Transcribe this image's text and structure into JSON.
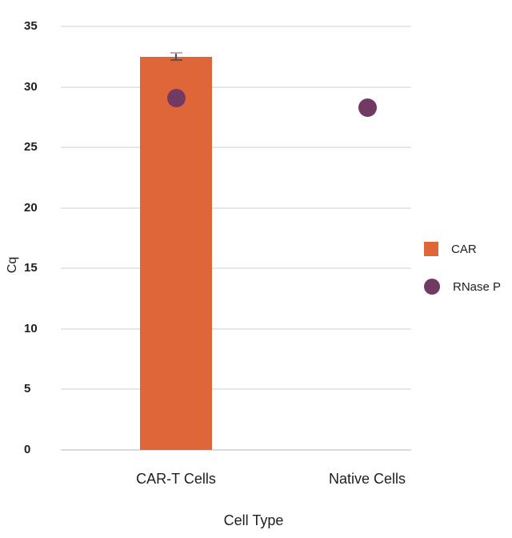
{
  "chart_data": {
    "type": "combo",
    "categories": [
      "CAR-T Cells",
      "Native Cells"
    ],
    "series": [
      {
        "name": "CAR",
        "type": "bar",
        "color": "#DE6638",
        "values": [
          32.5,
          null
        ],
        "errors": [
          0.3,
          null
        ]
      },
      {
        "name": "RNase P",
        "type": "scatter",
        "color": "#703A63",
        "values": [
          29.1,
          28.3
        ]
      }
    ],
    "xlabel": "Cell Type",
    "ylabel": "Cq",
    "ylim": [
      0,
      35
    ],
    "yticks": [
      35,
      30,
      25,
      20,
      15,
      10,
      5,
      0
    ],
    "grid": true,
    "legend_position": "right"
  },
  "colors": {
    "gridline": "#E7E7E7",
    "baseline": "#DBDBDB",
    "text": "#1E1E1E",
    "error_stick": "#474F58",
    "error_cap_top": "#B2B2B2",
    "error_cap_bottom": "#5C554E"
  }
}
